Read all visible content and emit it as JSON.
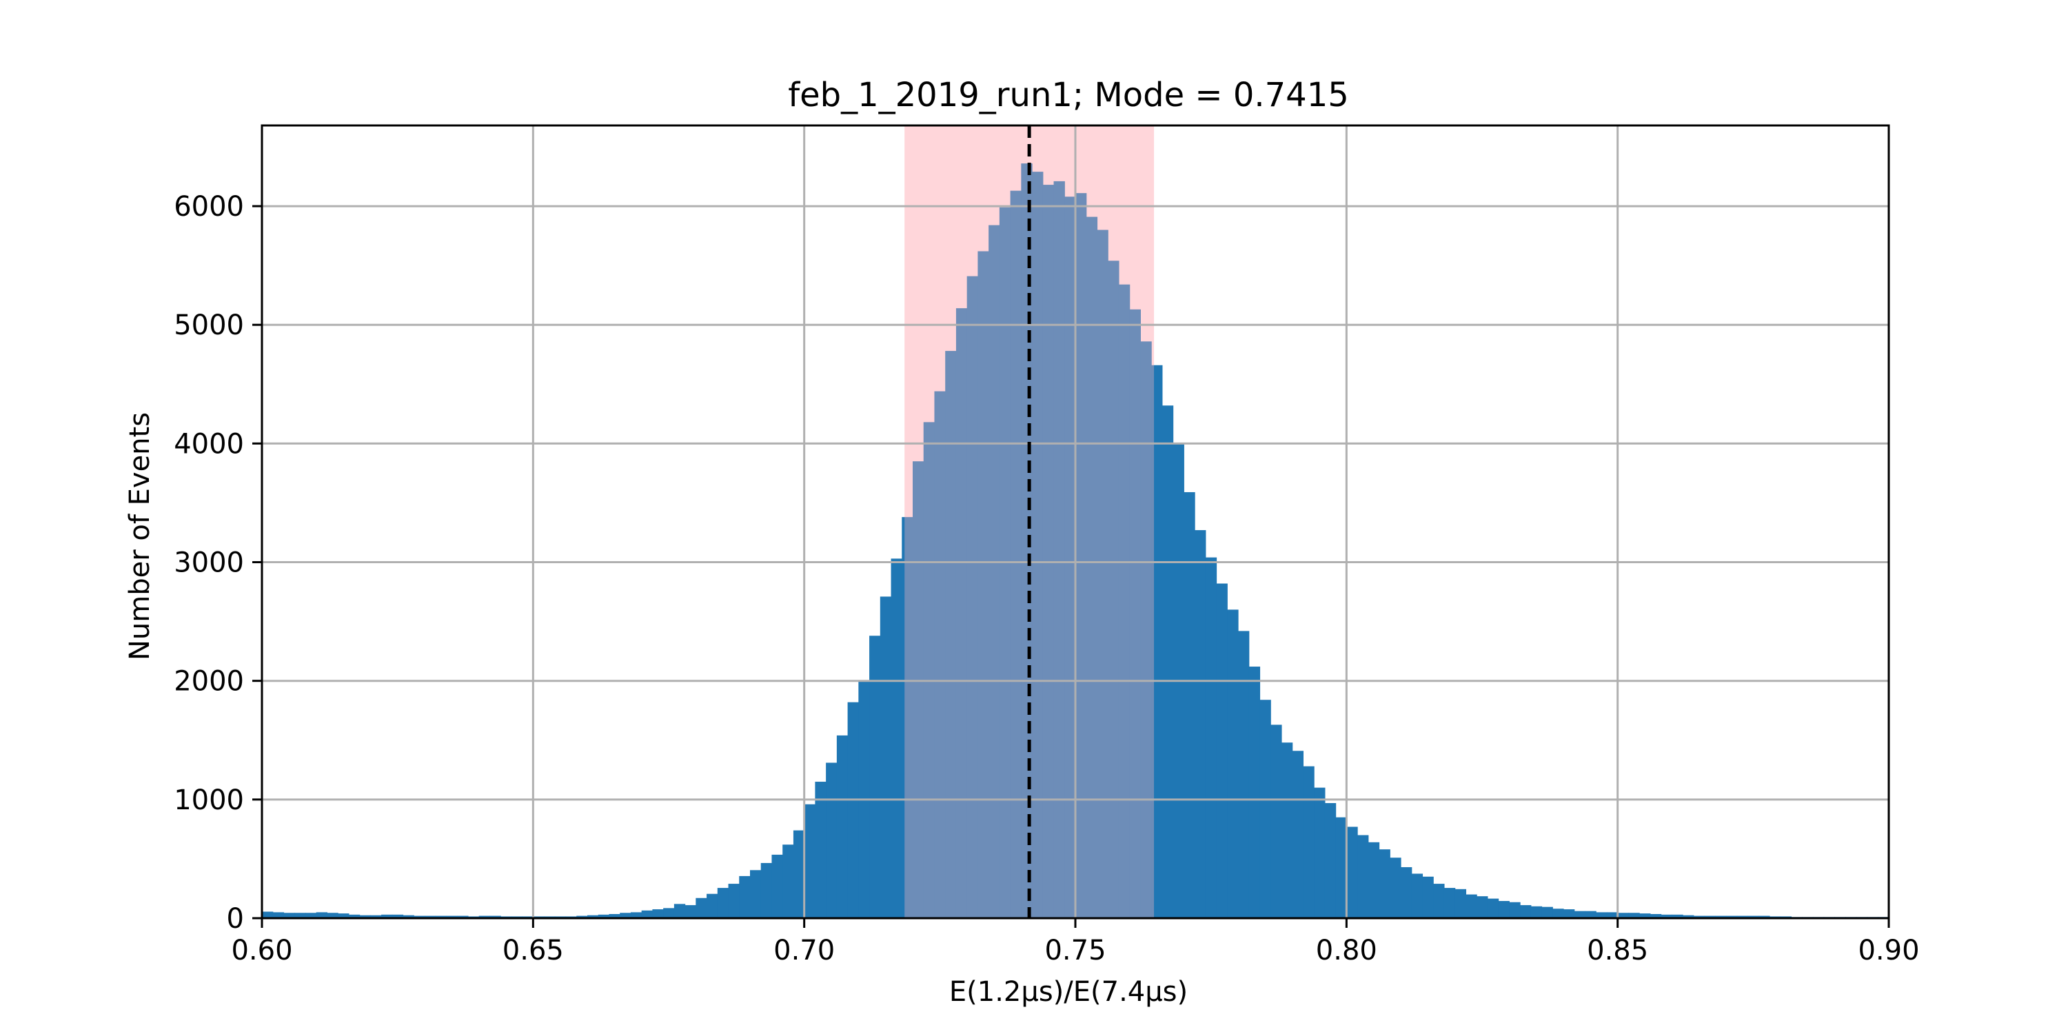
{
  "chart_data": {
    "type": "bar",
    "subtype": "histogram",
    "title": "feb_1_2019_run1; Mode = 0.7415",
    "xlabel": "E(1.2μs)/E(7.4μs)",
    "ylabel": "Number of Events",
    "xlim": [
      0.6,
      0.9
    ],
    "ylim": [
      0,
      6680
    ],
    "xticks": [
      0.6,
      0.65,
      0.7,
      0.75,
      0.8,
      0.85,
      0.9
    ],
    "xtick_labels": [
      "0.60",
      "0.65",
      "0.70",
      "0.75",
      "0.80",
      "0.85",
      "0.90"
    ],
    "yticks": [
      0,
      1000,
      2000,
      3000,
      4000,
      5000,
      6000
    ],
    "ytick_labels": [
      "0",
      "1000",
      "2000",
      "3000",
      "4000",
      "5000",
      "6000"
    ],
    "grid": true,
    "bin_start": 0.6,
    "bin_width": 0.002,
    "counts": [
      55,
      50,
      45,
      45,
      45,
      50,
      45,
      40,
      30,
      25,
      25,
      30,
      30,
      25,
      20,
      20,
      20,
      20,
      20,
      15,
      20,
      20,
      15,
      15,
      15,
      15,
      15,
      15,
      15,
      20,
      25,
      30,
      35,
      45,
      50,
      65,
      75,
      85,
      120,
      110,
      170,
      205,
      255,
      290,
      355,
      405,
      465,
      535,
      620,
      740,
      960,
      1150,
      1310,
      1540,
      1820,
      2000,
      2380,
      2710,
      3030,
      3380,
      3850,
      4180,
      4440,
      4780,
      5140,
      5410,
      5620,
      5840,
      5990,
      6130,
      6360,
      6290,
      6180,
      6210,
      6080,
      6110,
      5910,
      5800,
      5540,
      5340,
      5130,
      4860,
      4660,
      4320,
      4000,
      3590,
      3270,
      3040,
      2820,
      2600,
      2420,
      2120,
      1840,
      1630,
      1480,
      1410,
      1280,
      1100,
      970,
      850,
      770,
      700,
      640,
      580,
      510,
      430,
      375,
      350,
      290,
      255,
      245,
      200,
      185,
      165,
      145,
      135,
      110,
      100,
      95,
      80,
      75,
      60,
      60,
      50,
      50,
      45,
      45,
      40,
      35,
      30,
      30,
      25,
      20,
      20,
      20,
      20,
      20,
      20,
      20,
      15,
      15,
      10,
      10,
      10,
      10,
      10,
      10,
      10,
      10,
      10,
      10,
      10,
      10,
      10,
      10,
      10,
      10,
      10
    ],
    "bar_color": "#1f77b4",
    "mode": 0.7415,
    "mode_line": {
      "style": "dashed",
      "color": "#000000"
    },
    "highlight_band": {
      "x_start": 0.7185,
      "x_end": 0.7645,
      "color": "#ffb6c1"
    }
  }
}
